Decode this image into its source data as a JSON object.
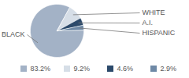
{
  "chart_data": {
    "type": "pie",
    "categories": [
      "BLACK",
      "WHITE",
      "A.I.",
      "HISPANIC"
    ],
    "values": [
      83.2,
      9.2,
      4.6,
      2.9
    ],
    "value_labels": [
      "83.2%",
      "9.2%",
      "4.6%",
      "2.9%"
    ],
    "colors": [
      "#a3b2c6",
      "#d6dee7",
      "#2c4a6b",
      "#6e89a6"
    ],
    "legend": "bottom"
  }
}
